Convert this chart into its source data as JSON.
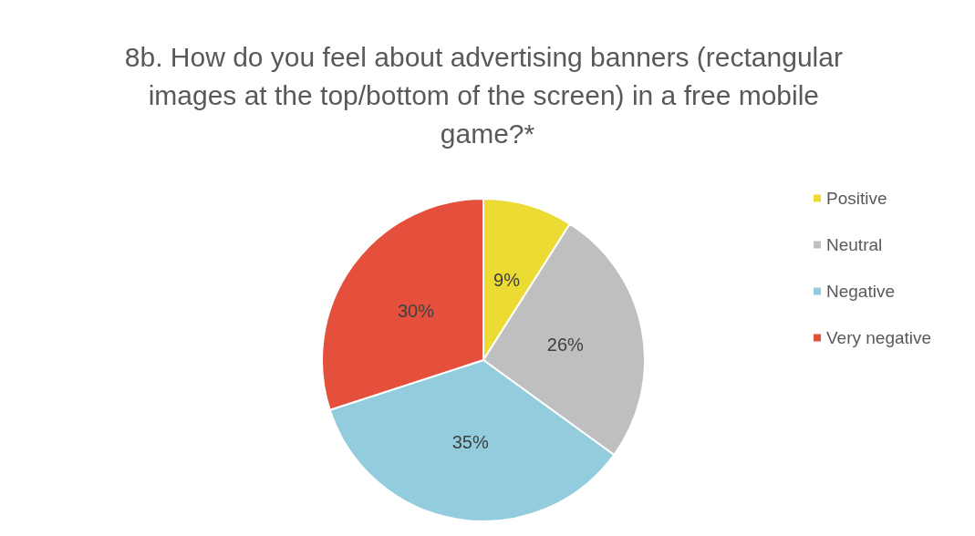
{
  "chart_data": {
    "type": "pie",
    "title": "8b. How do you feel about advertising banners (rectangular images at the top/bottom of the screen) in a free mobile game?*",
    "categories": [
      "Positive",
      "Neutral",
      "Negative",
      "Very negative"
    ],
    "values": [
      9,
      26,
      35,
      30
    ],
    "value_labels": [
      "9%",
      "26%",
      "35%",
      "30%"
    ],
    "colors": [
      "#ebdb32",
      "#bfbfbf",
      "#93cddd",
      "#e5503d"
    ],
    "legend": "right"
  }
}
